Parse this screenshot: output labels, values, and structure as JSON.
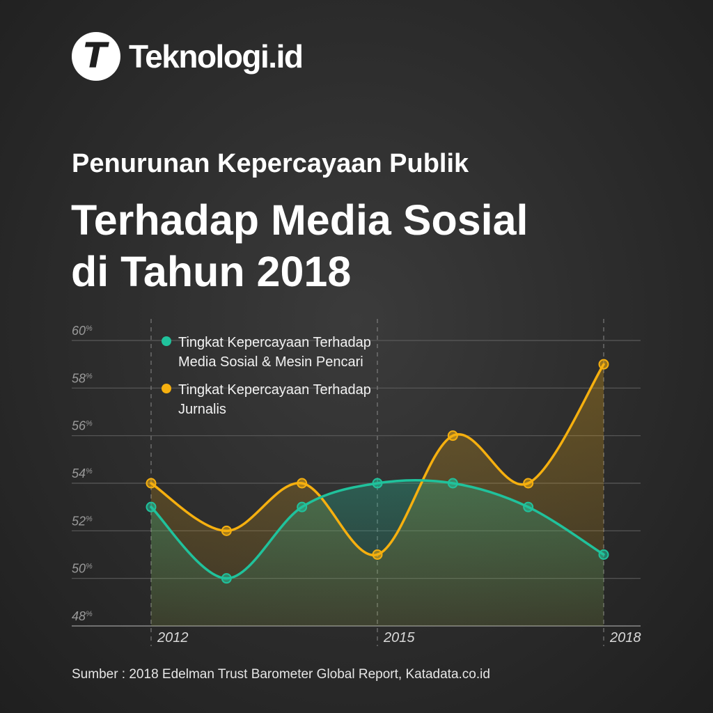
{
  "brand": {
    "logo_letter": "T",
    "name": "Teknologi.id"
  },
  "title": {
    "line1": "Penurunan Kepercayaan Publik",
    "line2": "Terhadap Media Sosial",
    "line3": "di Tahun 2018"
  },
  "source": "Sumber : 2018 Edelman Trust Barometer Global Report, Katadata.co.id",
  "colors": {
    "background": "#2e2e2e",
    "teal": "#20c29c",
    "orange": "#f6b00f",
    "grid": "#5a5a5a"
  },
  "chart_data": {
    "type": "line",
    "title": "Penurunan Kepercayaan Publik Terhadap Media Sosial di Tahun 2018",
    "x": [
      2012,
      2013,
      2014,
      2015,
      2016,
      2017,
      2018
    ],
    "x_tick_labels": [
      "2012",
      "2015",
      "2018"
    ],
    "x_tick_values": [
      2012,
      2015,
      2018
    ],
    "y_ticks": [
      48,
      50,
      52,
      54,
      56,
      58,
      60
    ],
    "y_tick_labels": [
      "48%",
      "50%",
      "52%",
      "54%",
      "56%",
      "58%",
      "60%"
    ],
    "ylim": [
      48,
      60
    ],
    "grid": true,
    "legend_position": "top-left",
    "series": [
      {
        "name": "Tingkat Kepercayaan Terhadap Media Sosial & Mesin Pencari",
        "color": "#20c29c",
        "values": [
          53,
          50,
          53,
          54,
          54,
          53,
          51
        ]
      },
      {
        "name": "Tingkat Kepercayaan Terhadap Jurnalis",
        "color": "#f6b00f",
        "values": [
          54,
          52,
          54,
          51,
          56,
          54,
          59
        ]
      }
    ]
  }
}
